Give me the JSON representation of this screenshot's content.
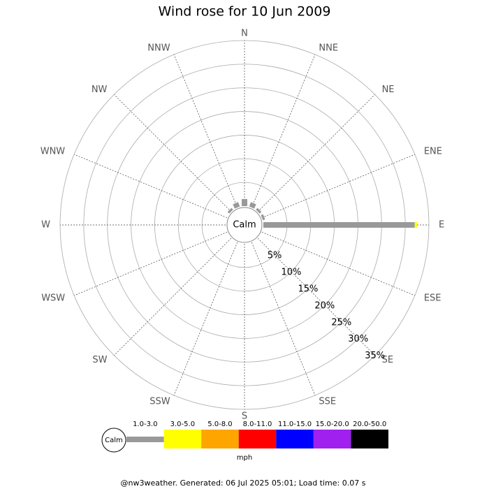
{
  "chart_data": {
    "type": "windrose",
    "title": "Wind rose for 10 Jun 2009",
    "directions": [
      "N",
      "NNE",
      "NE",
      "ENE",
      "E",
      "ESE",
      "SE",
      "SSE",
      "S",
      "SSW",
      "SW",
      "WSW",
      "W",
      "WNW",
      "NW",
      "NNW"
    ],
    "calm_label": "Calm",
    "series": [
      {
        "name": "1.0-3.0",
        "color": "#999999",
        "values": [
          1.5,
          1,
          0.5,
          0.5,
          32,
          0,
          0,
          0,
          0,
          0,
          0,
          0,
          0,
          0,
          0.5,
          1
        ]
      },
      {
        "name": "3.0-5.0",
        "color": "#ffff00",
        "values": [
          0,
          0,
          0,
          0,
          0.5,
          0,
          0,
          0,
          0,
          0,
          0,
          0,
          0,
          0,
          0,
          0
        ]
      },
      {
        "name": "5.0-8.0",
        "color": "#ffa500",
        "values": [
          0,
          0,
          0,
          0,
          0,
          0,
          0,
          0,
          0,
          0,
          0,
          0,
          0,
          0,
          0,
          0
        ]
      },
      {
        "name": "8.0-11.0",
        "color": "#ff0000",
        "values": [
          0,
          0,
          0,
          0,
          0,
          0,
          0,
          0,
          0,
          0,
          0,
          0,
          0,
          0,
          0,
          0
        ]
      },
      {
        "name": "11.0-15.0",
        "color": "#0000ff",
        "values": [
          0,
          0,
          0,
          0,
          0,
          0,
          0,
          0,
          0,
          0,
          0,
          0,
          0,
          0,
          0,
          0
        ]
      },
      {
        "name": "15.0-20.0",
        "color": "#a020f0",
        "values": [
          0,
          0,
          0,
          0,
          0,
          0,
          0,
          0,
          0,
          0,
          0,
          0,
          0,
          0,
          0,
          0
        ]
      },
      {
        "name": "20.0-50.0",
        "color": "#000000",
        "values": [
          0,
          0,
          0,
          0,
          0,
          0,
          0,
          0,
          0,
          0,
          0,
          0,
          0,
          0,
          0,
          0
        ]
      }
    ],
    "rlim": [
      0,
      35
    ],
    "rticks": [
      {
        "value": 5,
        "label": "5%"
      },
      {
        "value": 10,
        "label": "10%"
      },
      {
        "value": 15,
        "label": "15%"
      },
      {
        "value": 20,
        "label": "20%"
      },
      {
        "value": 25,
        "label": "25%"
      },
      {
        "value": 30,
        "label": "30%"
      },
      {
        "value": 35,
        "label": "35%"
      }
    ],
    "unit_label": "mph",
    "footer": "@nw3weather. Generated: 06 Jul 2025 05:01; Load time: 0.07 s"
  }
}
